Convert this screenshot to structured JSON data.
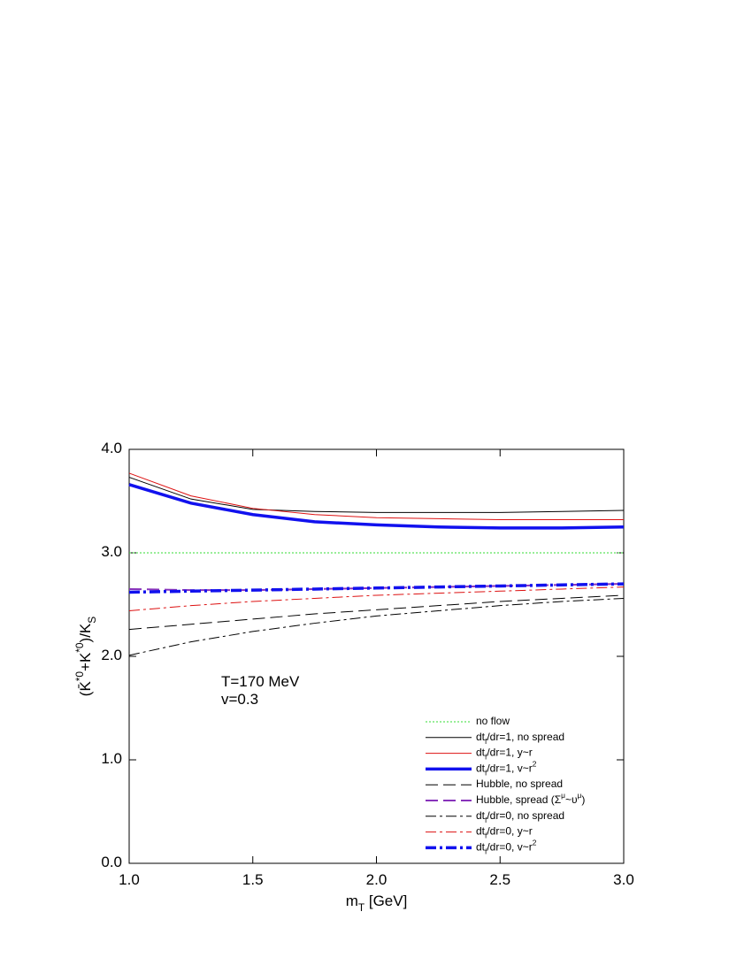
{
  "chart_data": {
    "type": "line",
    "x_label": "m_T [GeV]",
    "y_label": "(K̄^{*0}+K^{*0})/K_S",
    "annotations": [
      "T=170 MeV",
      "v=0.3"
    ],
    "x": [
      1.0,
      1.25,
      1.5,
      1.75,
      2.0,
      2.25,
      2.5,
      2.75,
      3.0
    ],
    "xlim": [
      1.0,
      3.0
    ],
    "xticks": [
      {
        "value": 1.0,
        "label": "1.0"
      },
      {
        "value": 1.5,
        "label": "1.5"
      },
      {
        "value": 2.0,
        "label": "2.0"
      },
      {
        "value": 2.5,
        "label": "2.5"
      },
      {
        "value": 3.0,
        "label": "3.0"
      }
    ],
    "ylim": [
      0.0,
      4.0
    ],
    "yticks": [
      {
        "value": 0.0,
        "label": "0.0"
      },
      {
        "value": 1.0,
        "label": "1.0"
      },
      {
        "value": 2.0,
        "label": "2.0"
      },
      {
        "value": 3.0,
        "label": "3.0"
      },
      {
        "value": 4.0,
        "label": "4.0"
      }
    ],
    "legend": "lower right",
    "series": [
      {
        "name": "no flow",
        "color": "#33dd33",
        "style": "dotted",
        "values": [
          3.0,
          3.0,
          3.0,
          3.0,
          3.0,
          3.0,
          3.0,
          3.0,
          3.0
        ]
      },
      {
        "name": "dt_f/dr=1, no spread",
        "color": "#000000",
        "style": "solid",
        "values": [
          3.73,
          3.52,
          3.42,
          3.4,
          3.39,
          3.39,
          3.39,
          3.4,
          3.41
        ]
      },
      {
        "name": "dt_f/dr=1, y~r",
        "color": "#dd1111",
        "style": "solid",
        "values": [
          3.77,
          3.55,
          3.43,
          3.37,
          3.34,
          3.33,
          3.32,
          3.32,
          3.32
        ]
      },
      {
        "name": "dt_f/dr=1, v~r^2",
        "color": "#1111ee",
        "style": "thick",
        "values": [
          3.66,
          3.48,
          3.37,
          3.3,
          3.27,
          3.25,
          3.24,
          3.24,
          3.25
        ]
      },
      {
        "name": "Hubble, no spread",
        "color": "#000000",
        "style": "dashed",
        "values": [
          2.26,
          2.31,
          2.36,
          2.41,
          2.45,
          2.49,
          2.53,
          2.56,
          2.59
        ]
      },
      {
        "name": "Hubble, spread (Σ^μ~υ^μ)",
        "color": "#8833bb",
        "style": "dashed-thick",
        "values": [
          2.65,
          2.64,
          2.64,
          2.65,
          2.66,
          2.67,
          2.68,
          2.69,
          2.7
        ]
      },
      {
        "name": "dt_f/dr=0, no spread",
        "color": "#000000",
        "style": "dashdot",
        "values": [
          2.01,
          2.14,
          2.24,
          2.32,
          2.39,
          2.44,
          2.49,
          2.53,
          2.56
        ]
      },
      {
        "name": "dt_f/dr=0, y~r",
        "color": "#dd1111",
        "style": "dashdot",
        "values": [
          2.44,
          2.49,
          2.53,
          2.56,
          2.59,
          2.61,
          2.63,
          2.65,
          2.67
        ]
      },
      {
        "name": "dt_f/dr=0, v~r^2",
        "color": "#1111ee",
        "style": "dashdot-thick",
        "values": [
          2.62,
          2.63,
          2.64,
          2.65,
          2.66,
          2.67,
          2.68,
          2.69,
          2.7
        ]
      }
    ]
  }
}
